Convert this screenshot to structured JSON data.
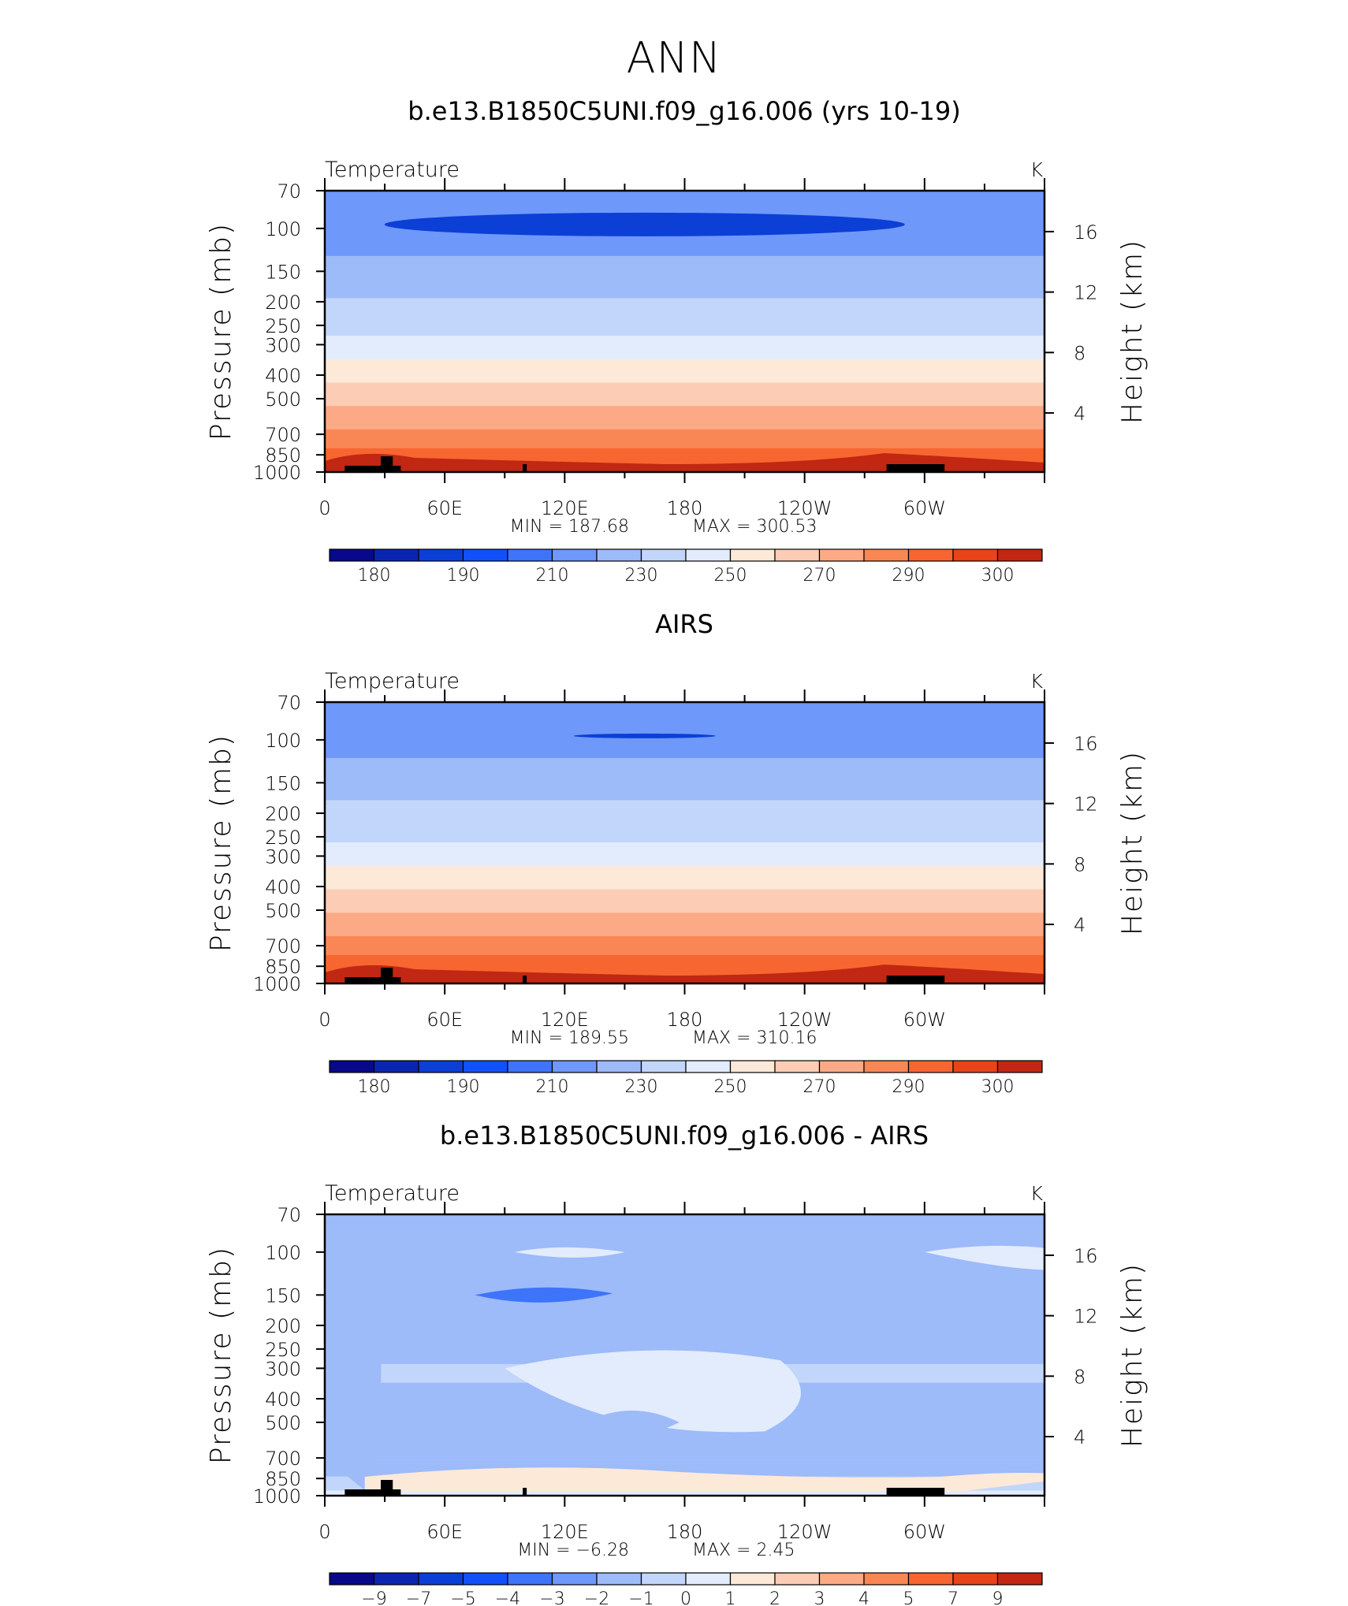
{
  "page_title": "ANN",
  "y_left_label": "Pressure (mb)",
  "y_right_label": "Height (km)",
  "pressure_ticks": [
    "70",
    "100",
    "150",
    "200",
    "250",
    "300",
    "400",
    "500",
    "700",
    "850",
    "1000"
  ],
  "height_ticks": [
    "16",
    "12",
    "8",
    "4"
  ],
  "x_ticks": [
    "0",
    "60E",
    "120E",
    "180",
    "120W",
    "60W"
  ],
  "colors": {
    "abs_scale": [
      "#08088a",
      "#0a26b0",
      "#0b3fd6",
      "#1250fb",
      "#3e74fa",
      "#6e98fa",
      "#9dbaf9",
      "#c2d6fb",
      "#e2ecfd",
      "#fde9d8",
      "#fccdb4",
      "#fbaa85",
      "#f98755",
      "#f76630",
      "#e8431a",
      "#c12712",
      "#95110a",
      "#6a0406"
    ],
    "diff_scale": [
      "#08088a",
      "#0a26b0",
      "#0b3fd6",
      "#1250fb",
      "#3e74fa",
      "#6e98fa",
      "#9dbaf9",
      "#c2d6fb",
      "#e2ecfd",
      "#fde9d8",
      "#fccdb4",
      "#fbaa85",
      "#f98755",
      "#f76630",
      "#e8431a",
      "#c12712",
      "#95110a",
      "#6a0406"
    ],
    "land": "#000000"
  },
  "chart_data": [
    {
      "type": "heatmap",
      "title": "b.e13.B1850C5UNI.f09_g16.006 (yrs 10-19)",
      "variable": "Temperature",
      "units": "K",
      "x_ticks": [
        "0",
        "60E",
        "120E",
        "180",
        "120W",
        "60W"
      ],
      "xlim": [
        0,
        360
      ],
      "y_scale": "log pressure",
      "ylim": [
        1000,
        70
      ],
      "min_label": "MIN  =  187.68",
      "max_label": "MAX  =  300.53",
      "min": 187.68,
      "max": 300.53,
      "colorbar_labels": [
        "180",
        "190",
        "210",
        "230",
        "250",
        "270",
        "290",
        "300"
      ],
      "profile": [
        {
          "p": 70,
          "value": 207
        },
        {
          "p": 100,
          "value": 205
        },
        {
          "p": 150,
          "value": 213
        },
        {
          "p": 200,
          "value": 221
        },
        {
          "p": 250,
          "value": 226
        },
        {
          "p": 300,
          "value": 233
        },
        {
          "p": 400,
          "value": 247
        },
        {
          "p": 500,
          "value": 256
        },
        {
          "p": 700,
          "value": 273
        },
        {
          "p": 850,
          "value": 283
        },
        {
          "p": 1000,
          "value": 291
        }
      ]
    },
    {
      "type": "heatmap",
      "title": "AIRS",
      "variable": "Temperature",
      "units": "K",
      "x_ticks": [
        "0",
        "60E",
        "120E",
        "180",
        "120W",
        "60W"
      ],
      "xlim": [
        0,
        360
      ],
      "y_scale": "log pressure",
      "ylim": [
        1000,
        70
      ],
      "min_label": "MIN  =  189.55",
      "max_label": "MAX  =  310.16",
      "min": 189.55,
      "max": 310.16,
      "colorbar_labels": [
        "180",
        "190",
        "210",
        "230",
        "250",
        "270",
        "290",
        "300"
      ],
      "profile": [
        {
          "p": 70,
          "value": 207
        },
        {
          "p": 100,
          "value": 206
        },
        {
          "p": 150,
          "value": 215
        },
        {
          "p": 200,
          "value": 223
        },
        {
          "p": 250,
          "value": 228
        },
        {
          "p": 300,
          "value": 235
        },
        {
          "p": 400,
          "value": 249
        },
        {
          "p": 500,
          "value": 258
        },
        {
          "p": 700,
          "value": 275
        },
        {
          "p": 850,
          "value": 285
        },
        {
          "p": 1000,
          "value": 292
        }
      ]
    },
    {
      "type": "heatmap",
      "title": "b.e13.B1850C5UNI.f09_g16.006 - AIRS",
      "variable": "Temperature",
      "units": "K",
      "x_ticks": [
        "0",
        "60E",
        "120E",
        "180",
        "120W",
        "60W"
      ],
      "xlim": [
        0,
        360
      ],
      "y_scale": "log pressure",
      "ylim": [
        1000,
        70
      ],
      "min_label": "MIN  =   −6.28",
      "max_label": "MAX  =     2.45",
      "min": -6.28,
      "max": 2.45,
      "colorbar_labels": [
        "−9",
        "−7",
        "−5",
        "−4",
        "−3",
        "−2",
        "−1",
        "0",
        "1",
        "2",
        "3",
        "4",
        "5",
        "7",
        "9"
      ],
      "profile": [
        {
          "p": 70,
          "value": -2.0
        },
        {
          "p": 100,
          "value": -1.0
        },
        {
          "p": 150,
          "value": -2.0
        },
        {
          "p": 200,
          "value": -1.6
        },
        {
          "p": 250,
          "value": -1.5
        },
        {
          "p": 300,
          "value": -0.8
        },
        {
          "p": 400,
          "value": -1.2
        },
        {
          "p": 500,
          "value": -1.5
        },
        {
          "p": 700,
          "value": -1.5
        },
        {
          "p": 850,
          "value": -1.0
        },
        {
          "p": 1000,
          "value": 0.3
        }
      ]
    }
  ]
}
